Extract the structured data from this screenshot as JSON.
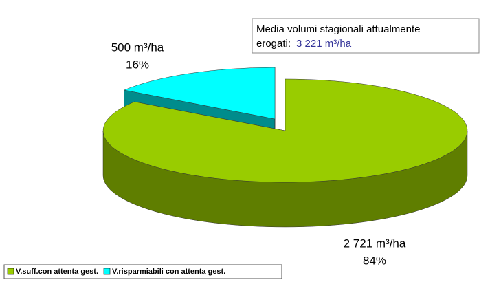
{
  "chart_data": {
    "type": "pie",
    "categories": [
      "V.suff.con attenta gest.",
      "V.risparmiabili con attenta gest."
    ],
    "values": [
      2721,
      500
    ],
    "value_labels": [
      "2 721 m³/ha",
      "500 m³/ha"
    ],
    "percentages": [
      84,
      16
    ],
    "percentage_labels": [
      "84%",
      "16%"
    ],
    "colors": [
      "#99cc00",
      "#00ffff"
    ],
    "annotation": [
      "Media volumi stagionali attualmente",
      "erogati:",
      "3 221 m³/ha"
    ],
    "legend": "bottom-left"
  }
}
